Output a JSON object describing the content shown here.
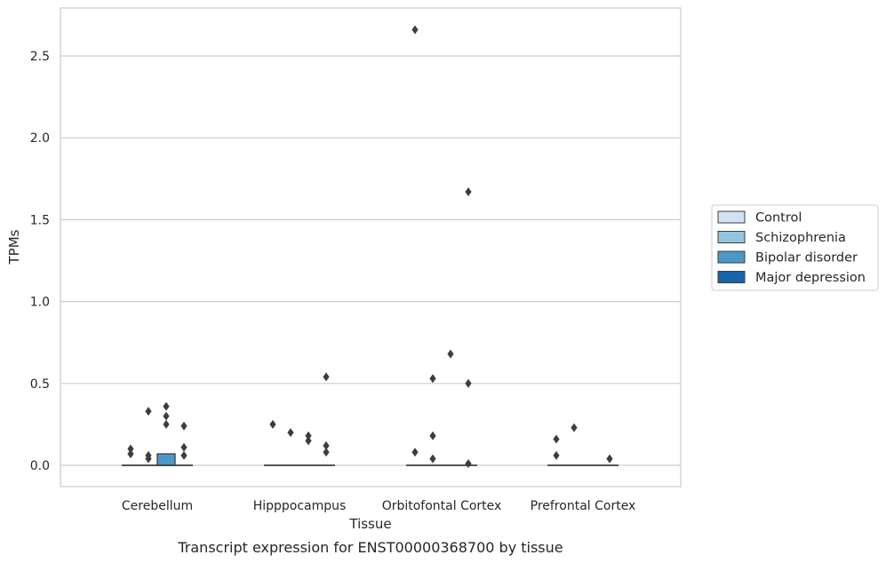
{
  "chart_data": {
    "type": "box",
    "xlabel": "Tissue",
    "ylabel": "TPMs",
    "caption": "Transcript expression for ENST00000368700 by tissue",
    "ylim": [
      -0.13,
      2.81
    ],
    "yticks": [
      "0.0",
      "0.5",
      "1.0",
      "1.5",
      "2.0",
      "2.5"
    ],
    "grid": "horizontal",
    "legend_position": "right",
    "categories": [
      "Cerebellum",
      "Hipppocampus",
      "Orbitofontal Cortex",
      "Prefrontal Cortex"
    ],
    "series": [
      {
        "name": "Control",
        "color": "#d0e1f2",
        "boxes": [
          {
            "q1": 0,
            "median": 0,
            "q3": 0,
            "outliers": [
              0.07,
              0.1
            ]
          },
          {
            "q1": 0,
            "median": 0,
            "q3": 0,
            "outliers": [
              0.25
            ]
          },
          {
            "q1": 0,
            "median": 0,
            "q3": 0,
            "outliers": [
              2.66,
              0.08
            ]
          },
          {
            "q1": 0,
            "median": 0,
            "q3": 0,
            "outliers": [
              0.16,
              0.06
            ]
          }
        ]
      },
      {
        "name": "Schizophrenia",
        "color": "#94c4df",
        "boxes": [
          {
            "q1": 0,
            "median": 0,
            "q3": 0,
            "outliers": [
              0.33,
              0.06,
              0.04
            ]
          },
          {
            "q1": 0,
            "median": 0,
            "q3": 0,
            "outliers": [
              0.2
            ]
          },
          {
            "q1": 0,
            "median": 0,
            "q3": 0,
            "outliers": [
              0.53,
              0.18,
              0.04
            ]
          },
          {
            "q1": 0,
            "median": 0,
            "q3": 0,
            "outliers": [
              0.23
            ]
          }
        ]
      },
      {
        "name": "Bipolar disorder",
        "color": "#4a98c9",
        "boxes": [
          {
            "q1": 0,
            "median": 0,
            "q3": 0.07,
            "outliers": [
              0.36,
              0.3,
              0.25
            ]
          },
          {
            "q1": 0,
            "median": 0,
            "q3": 0,
            "outliers": [
              0.18,
              0.15
            ]
          },
          {
            "q1": 0,
            "median": 0,
            "q3": 0,
            "outliers": [
              0.68
            ]
          },
          {
            "q1": 0,
            "median": 0,
            "q3": 0,
            "outliers": []
          }
        ]
      },
      {
        "name": "Major depression",
        "color": "#1764ab",
        "boxes": [
          {
            "q1": 0,
            "median": 0,
            "q3": 0,
            "outliers": [
              0.24,
              0.11,
              0.06
            ]
          },
          {
            "q1": 0,
            "median": 0,
            "q3": 0,
            "outliers": [
              0.54,
              0.12,
              0.08
            ]
          },
          {
            "q1": 0,
            "median": 0,
            "q3": 0,
            "outliers": [
              1.67,
              0.5,
              0.01
            ]
          },
          {
            "q1": 0,
            "median": 0,
            "q3": 0,
            "outliers": [
              0.04
            ]
          }
        ]
      }
    ]
  }
}
